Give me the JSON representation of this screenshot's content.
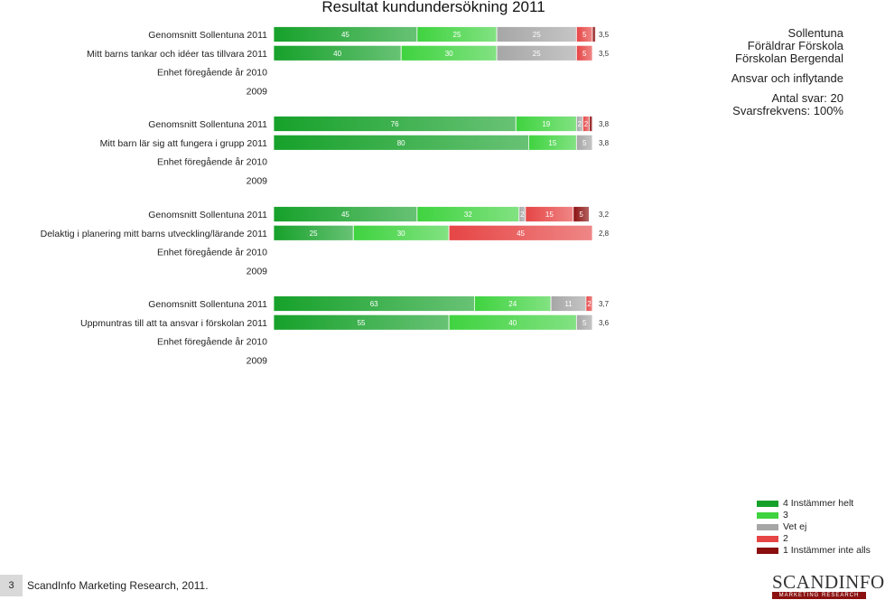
{
  "title": "Resultat kundundersökning 2011",
  "info": {
    "lines": [
      "Sollentuna",
      "Föräldrar Förskola",
      "Förskolan Bergendal"
    ],
    "section": "Ansvar och inflytande",
    "antal": "Antal svar: 20",
    "frekvens": "Svarsfrekvens: 100%"
  },
  "colors": {
    "s4": "#16a12a",
    "s3": "#3fd33f",
    "s2x": "#a6a6a6",
    "s2": "#e64545",
    "s1": "#8b0f0f"
  },
  "chart_data": {
    "type": "bar",
    "orientation": "horizontal",
    "stacked": true,
    "xlim": [
      0,
      100
    ],
    "unit": "%",
    "series": [
      {
        "name": "4 Instämmer helt"
      },
      {
        "name": "3"
      },
      {
        "name": "Vet ej"
      },
      {
        "name": "2"
      },
      {
        "name": "1 Instämmer inte alls"
      }
    ],
    "questions": [
      {
        "question": "Mitt barns tankar och idéer tas tillvara",
        "rows": [
          {
            "label": "Genomsnitt Sollentuna 2011",
            "values": [
              45,
              25,
              25,
              5,
              1
            ],
            "labels": [
              "45",
              "25",
              "25",
              "5",
              ""
            ],
            "mean": "3,5"
          },
          {
            "label": "Mitt barns tankar och idéer tas tillvara 2011",
            "values": [
              40,
              30,
              25,
              5,
              0
            ],
            "labels": [
              "40",
              "30",
              "25",
              "5",
              ""
            ],
            "mean": "3,5"
          },
          {
            "label": "Enhet föregående år 2010",
            "values": null,
            "mean": ""
          },
          {
            "label": "2009",
            "values": null,
            "mean": ""
          }
        ]
      },
      {
        "question": "Mitt barn lär sig att fungera i grupp",
        "rows": [
          {
            "label": "Genomsnitt Sollentuna 2011",
            "values": [
              76,
              19,
              2,
              2,
              1
            ],
            "labels": [
              "76",
              "19",
              "2",
              "2",
              ""
            ],
            "mean": "3,8"
          },
          {
            "label": "Mitt barn lär sig att fungera i grupp 2011",
            "values": [
              80,
              15,
              5,
              0,
              0
            ],
            "labels": [
              "80",
              "15",
              "5",
              "",
              ""
            ],
            "mean": "3,8"
          },
          {
            "label": "Enhet föregående år 2010",
            "values": null,
            "mean": ""
          },
          {
            "label": "2009",
            "values": null,
            "mean": ""
          }
        ]
      },
      {
        "question": "Delaktig i planering mitt barns utveckling/lärande",
        "rows": [
          {
            "label": "Genomsnitt Sollentuna 2011",
            "values": [
              45,
              32,
              2,
              15,
              5
            ],
            "labels": [
              "45",
              "32",
              "2",
              "15",
              "5"
            ],
            "mean": "3,2"
          },
          {
            "label": "Delaktig i planering mitt barns utveckling/lärande 2011",
            "values": [
              25,
              30,
              0,
              45,
              0
            ],
            "labels": [
              "25",
              "30",
              "",
              "45",
              ""
            ],
            "mean": "2,8"
          },
          {
            "label": "Enhet föregående år 2010",
            "values": null,
            "mean": ""
          },
          {
            "label": "2009",
            "values": null,
            "mean": ""
          }
        ]
      },
      {
        "question": "Uppmuntras till att ta ansvar i förskolan",
        "rows": [
          {
            "label": "Genomsnitt Sollentuna 2011",
            "values": [
              63,
              24,
              11,
              2,
              0
            ],
            "labels": [
              "63",
              "24",
              "11",
              "2",
              ""
            ],
            "mean": "3,7"
          },
          {
            "label": "Uppmuntras till att ta ansvar i förskolan 2011",
            "values": [
              55,
              40,
              5,
              0,
              0
            ],
            "labels": [
              "55",
              "40",
              "5",
              "",
              ""
            ],
            "mean": "3,6"
          },
          {
            "label": "Enhet föregående år 2010",
            "values": null,
            "mean": ""
          },
          {
            "label": "2009",
            "values": null,
            "mean": ""
          }
        ]
      }
    ],
    "legend": [
      "4 Instämmer helt",
      "3",
      "Vet ej",
      "2",
      "1 Instämmer inte alls"
    ]
  },
  "footer": {
    "page": "3",
    "text": "ScandInfo Marketing Research, 2011."
  },
  "logo": {
    "main": "SCANDINFO",
    "sub": "MARKETING RESEARCH"
  }
}
